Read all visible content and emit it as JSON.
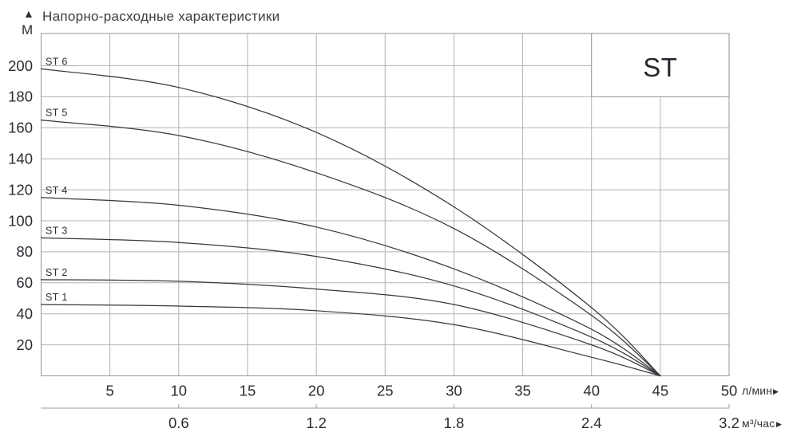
{
  "header": {
    "title": "Напорно-расходные характеристики",
    "y_axis_unit": "М",
    "y_axis_arrow": "▲"
  },
  "legend_box": {
    "label": "ST"
  },
  "axes": {
    "x_primary": {
      "unit": "л/мин",
      "arrow": "▶",
      "tick_values": [
        5,
        10,
        15,
        20,
        25,
        30,
        35,
        40,
        45,
        50
      ]
    },
    "x_secondary": {
      "unit": "м³/час",
      "arrow": "▶",
      "ticks": [
        {
          "label": "0.6",
          "at_lmin": 10
        },
        {
          "label": "1.2",
          "at_lmin": 20
        },
        {
          "label": "1.8",
          "at_lmin": 30
        },
        {
          "label": "2.4",
          "at_lmin": 40
        },
        {
          "label": "3.2",
          "at_lmin": 50
        }
      ]
    },
    "y": {
      "unit": "М",
      "tick_values": [
        20,
        40,
        60,
        80,
        100,
        120,
        140,
        160,
        180,
        200
      ]
    }
  },
  "chart_data": {
    "type": "line",
    "title": "Напорно-расходные характеристики",
    "xlabel": "л/мин",
    "x2label": "м³/час",
    "ylabel": "М",
    "xlim": [
      0,
      50
    ],
    "ylim": [
      0,
      220
    ],
    "grid": true,
    "legend_position": "top-right",
    "convergence_point": [
      45,
      0
    ],
    "series": [
      {
        "name": "ST 1",
        "points": [
          [
            0,
            46
          ],
          [
            10,
            45
          ],
          [
            20,
            42
          ],
          [
            30,
            33
          ],
          [
            40,
            12
          ],
          [
            45,
            0
          ]
        ]
      },
      {
        "name": "ST 2",
        "points": [
          [
            0,
            62
          ],
          [
            10,
            61
          ],
          [
            20,
            56
          ],
          [
            30,
            46
          ],
          [
            40,
            20
          ],
          [
            45,
            0
          ]
        ]
      },
      {
        "name": "ST 3",
        "points": [
          [
            0,
            89
          ],
          [
            10,
            86
          ],
          [
            20,
            77
          ],
          [
            30,
            58
          ],
          [
            40,
            25
          ],
          [
            45,
            0
          ]
        ]
      },
      {
        "name": "ST 4",
        "points": [
          [
            0,
            115
          ],
          [
            10,
            110
          ],
          [
            20,
            96
          ],
          [
            30,
            69
          ],
          [
            40,
            30
          ],
          [
            45,
            0
          ]
        ]
      },
      {
        "name": "ST 5",
        "points": [
          [
            0,
            165
          ],
          [
            10,
            155
          ],
          [
            20,
            131
          ],
          [
            30,
            95
          ],
          [
            40,
            39
          ],
          [
            45,
            0
          ]
        ]
      },
      {
        "name": "ST 6",
        "points": [
          [
            0,
            198
          ],
          [
            10,
            186
          ],
          [
            20,
            157
          ],
          [
            30,
            109
          ],
          [
            40,
            44
          ],
          [
            45,
            0
          ]
        ]
      }
    ]
  },
  "colors": {
    "curve": "#37373c",
    "grid": "#b2b2b2",
    "frame": "#9d9d9d",
    "text": "#2c2c33",
    "background": "#ffffff"
  }
}
